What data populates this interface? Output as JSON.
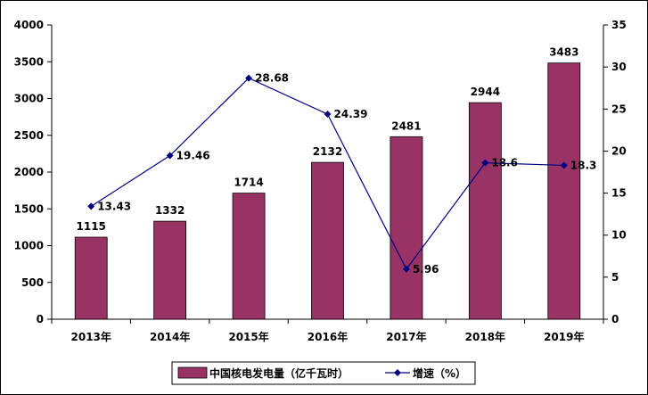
{
  "chart_data": {
    "type": "bar+line",
    "categories": [
      "2013年",
      "2014年",
      "2015年",
      "2016年",
      "2017年",
      "2018年",
      "2019年"
    ],
    "series": [
      {
        "name": "中国核电发电量（亿千瓦时）",
        "type": "bar",
        "axis": "left",
        "values": [
          1115,
          1332,
          1714,
          2132,
          2481,
          2944,
          3483
        ],
        "color": "#993366"
      },
      {
        "name": "增速（%）",
        "type": "line",
        "axis": "right",
        "values": [
          13.43,
          19.46,
          28.68,
          24.39,
          5.96,
          18.6,
          18.3
        ],
        "color": "#000080"
      }
    ],
    "data_labels_bar": [
      "1115",
      "1332",
      "1714",
      "2132",
      "2481",
      "2944",
      "3483"
    ],
    "data_labels_line": [
      "13.43",
      "19.46",
      "28.68",
      "24.39",
      "5.96",
      "18.6",
      "18.3"
    ],
    "y_left": {
      "ylim": [
        0,
        4000
      ],
      "ticks": [
        "0",
        "500",
        "1000",
        "1500",
        "2000",
        "2500",
        "3000",
        "3500",
        "4000"
      ]
    },
    "y_right": {
      "ylim": [
        0,
        35
      ],
      "ticks": [
        "0",
        "5",
        "10",
        "15",
        "20",
        "25",
        "30",
        "35"
      ]
    },
    "grid": false,
    "legend_position": "bottom"
  }
}
